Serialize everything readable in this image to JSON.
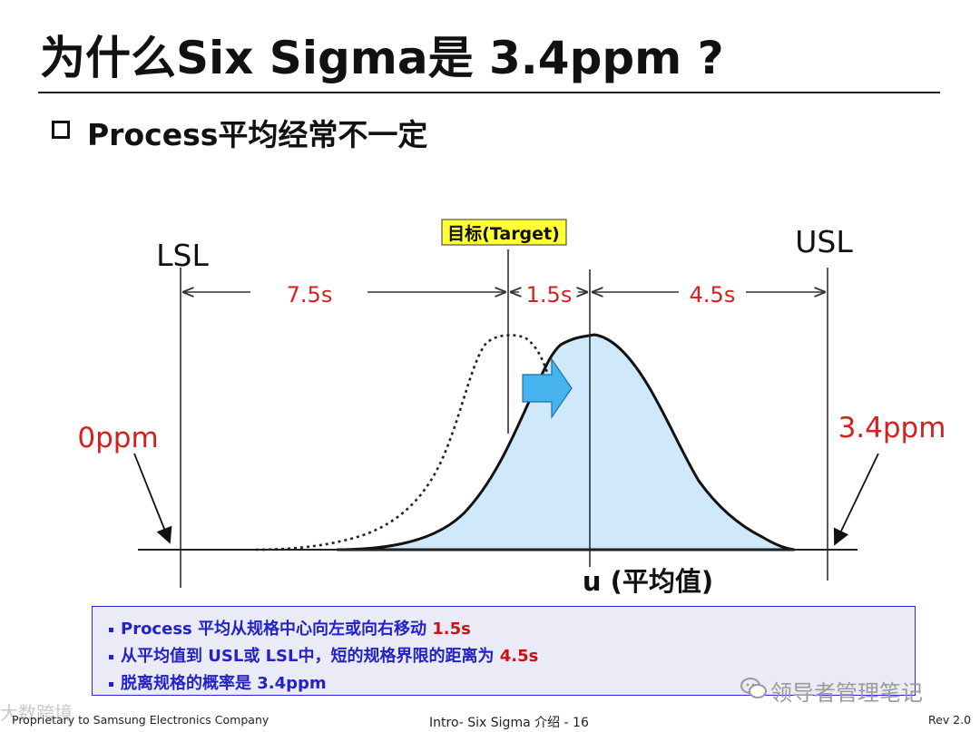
{
  "slide": {
    "title": "为什么Six Sigma是 3.4ppm ?",
    "subtitle": "Process平均经常不一定"
  },
  "diagram": {
    "labels": {
      "lsl": "LSL",
      "usl": "USL",
      "target": "目标(Target)",
      "mean": "u (平均值)",
      "left_ppm": "0ppm",
      "right_ppm": "3.4ppm"
    },
    "distances": {
      "lsl_to_target": "7.5s",
      "target_to_mean": "1.5s",
      "mean_to_usl": "4.5s"
    },
    "colors": {
      "curve_fill": "#cfe8fa",
      "arrow_fill": "#45b3ee",
      "target_label_bg": "#ffff33",
      "emphasis": "#d62020"
    }
  },
  "notes": {
    "items": [
      {
        "text": "Process 平均从规格中心向左或向右移动 ",
        "highlight": "1.5s"
      },
      {
        "text": "从平均值到 USL或 LSL中，短的规格界限的距离为 ",
        "highlight": "4.5s"
      },
      {
        "text": "脱离规格的概率是 3.4ppm",
        "highlight": ""
      }
    ]
  },
  "footer": {
    "left": "Proprietary to Samsung Electronics Company",
    "center": "Intro- Six Sigma 介绍 - 16",
    "right": "Rev 2.0"
  },
  "watermarks": {
    "right": "领导者管理笔记",
    "left": "大数跨境"
  }
}
